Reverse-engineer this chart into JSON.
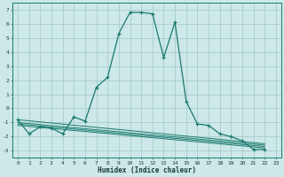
{
  "xlabel": "Humidex (Indice chaleur)",
  "bg_color": "#cce8e8",
  "grid_color": "#aacccc",
  "line_color": "#1a7a6e",
  "xlim": [
    -0.5,
    23.5
  ],
  "ylim": [
    -3.5,
    7.5
  ],
  "xticks": [
    0,
    1,
    2,
    3,
    4,
    5,
    6,
    7,
    8,
    9,
    10,
    11,
    12,
    13,
    14,
    15,
    16,
    17,
    18,
    19,
    20,
    21,
    22,
    23
  ],
  "yticks": [
    -3,
    -2,
    -1,
    0,
    1,
    2,
    3,
    4,
    5,
    6,
    7
  ],
  "series": [
    [
      0,
      -0.8
    ],
    [
      1,
      -1.8
    ],
    [
      2,
      -1.3
    ],
    [
      3,
      -1.4
    ],
    [
      4,
      -1.8
    ],
    [
      5,
      -0.6
    ],
    [
      6,
      -0.9
    ],
    [
      7,
      1.5
    ],
    [
      8,
      2.2
    ],
    [
      9,
      5.3
    ],
    [
      10,
      6.8
    ],
    [
      11,
      6.8
    ],
    [
      12,
      6.7
    ],
    [
      13,
      3.6
    ],
    [
      14,
      6.1
    ],
    [
      15,
      0.5
    ],
    [
      16,
      -1.1
    ],
    [
      17,
      -1.2
    ],
    [
      18,
      -1.8
    ],
    [
      19,
      -2.0
    ],
    [
      20,
      -2.3
    ],
    [
      21,
      -2.9
    ],
    [
      22,
      -2.9
    ]
  ],
  "flat_lines": [
    {
      "x": [
        0,
        22
      ],
      "y": [
        -0.8,
        -2.5
      ]
    },
    {
      "x": [
        0,
        22
      ],
      "y": [
        -1.0,
        -2.6
      ]
    },
    {
      "x": [
        0,
        22
      ],
      "y": [
        -1.1,
        -2.7
      ]
    },
    {
      "x": [
        0,
        22
      ],
      "y": [
        -1.2,
        -2.8
      ]
    }
  ]
}
